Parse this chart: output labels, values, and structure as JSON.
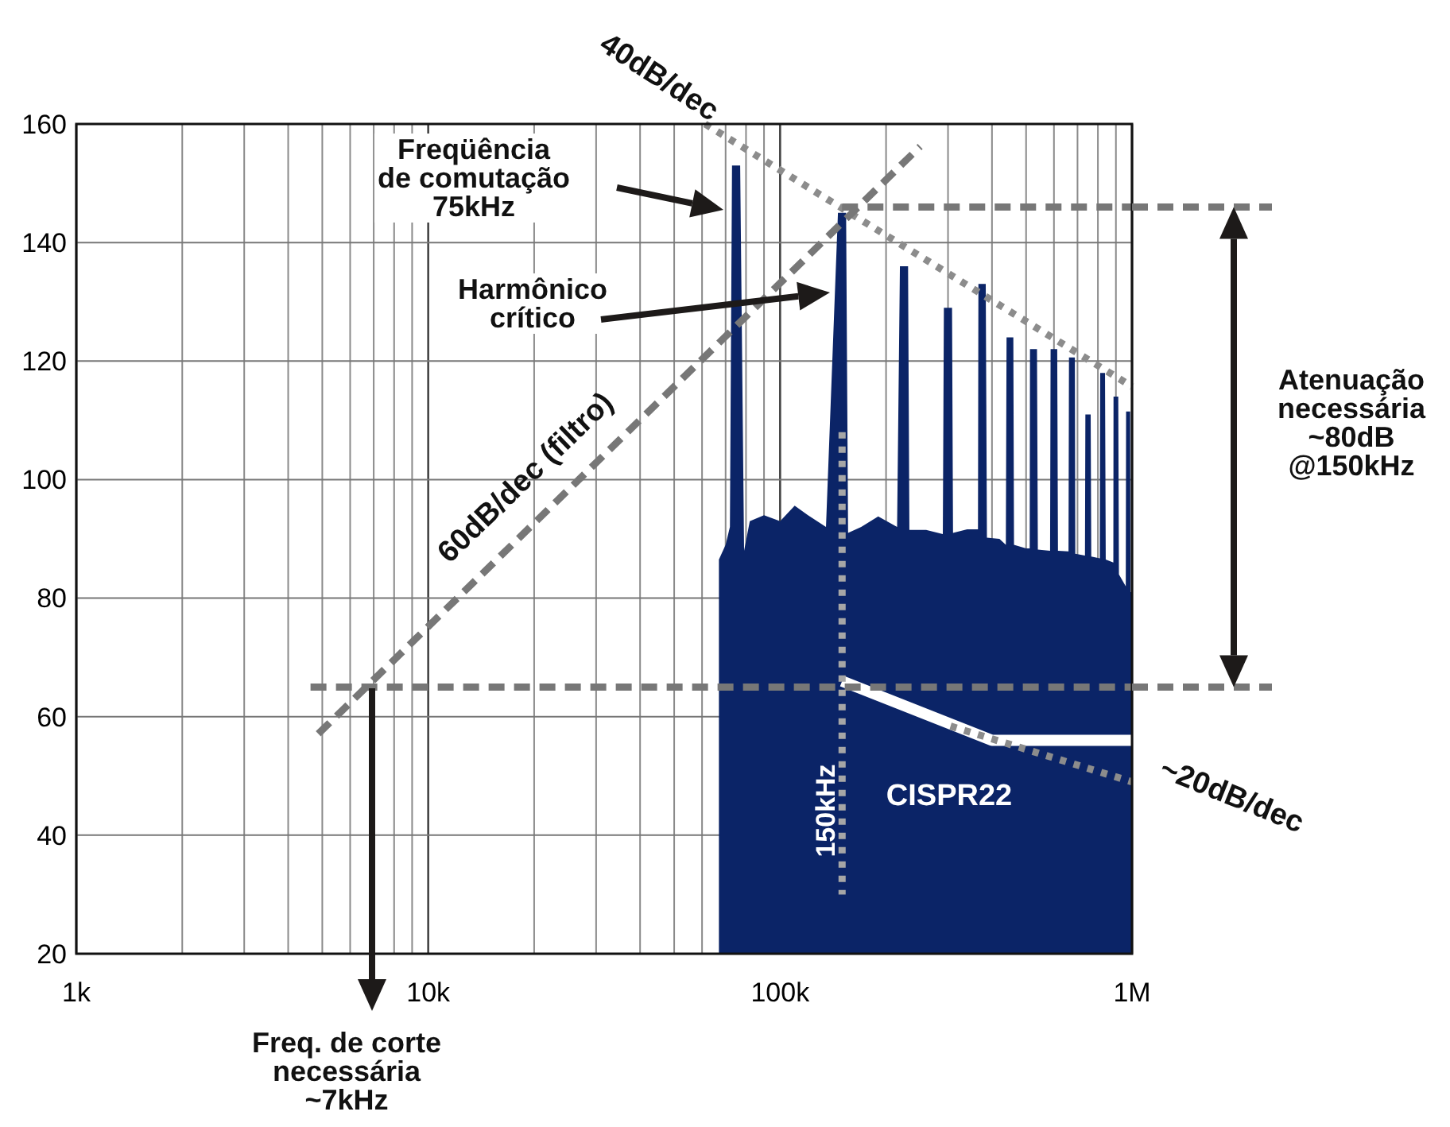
{
  "chart_data": {
    "type": "area",
    "log": "x",
    "grid": true,
    "xlim": [
      1000,
      1000000
    ],
    "ylim": [
      20,
      160
    ],
    "xticks": [
      {
        "value": 1000,
        "label": "1k"
      },
      {
        "value": 2000,
        "label": null
      },
      {
        "value": 3000,
        "label": null
      },
      {
        "value": 4000,
        "label": null
      },
      {
        "value": 5000,
        "label": null
      },
      {
        "value": 6000,
        "label": null
      },
      {
        "value": 7000,
        "label": null
      },
      {
        "value": 8000,
        "label": null
      },
      {
        "value": 9000,
        "label": null
      },
      {
        "value": 10000,
        "label": "10k"
      },
      {
        "value": 20000,
        "label": null
      },
      {
        "value": 30000,
        "label": null
      },
      {
        "value": 40000,
        "label": null
      },
      {
        "value": 50000,
        "label": null
      },
      {
        "value": 60000,
        "label": null
      },
      {
        "value": 70000,
        "label": null
      },
      {
        "value": 80000,
        "label": null
      },
      {
        "value": 90000,
        "label": null
      },
      {
        "value": 100000,
        "label": "100k"
      },
      {
        "value": 200000,
        "label": null
      },
      {
        "value": 300000,
        "label": null
      },
      {
        "value": 400000,
        "label": null
      },
      {
        "value": 500000,
        "label": null
      },
      {
        "value": 600000,
        "label": null
      },
      {
        "value": 700000,
        "label": null
      },
      {
        "value": 800000,
        "label": null
      },
      {
        "value": 900000,
        "label": null
      },
      {
        "value": 1000000,
        "label": "1M"
      }
    ],
    "yticks": [
      20,
      40,
      60,
      80,
      100,
      120,
      140,
      160
    ],
    "series": [
      {
        "color": "#0b2467",
        "x": [
          67000,
          70000,
          72000,
          73000,
          77000,
          79000,
          82000,
          90000,
          100000,
          110000,
          120000,
          135000,
          146000,
          154000,
          156000,
          170000,
          190000,
          215000,
          219000,
          231000,
          233000,
          260000,
          290000,
          292000,
          308000,
          310000,
          340000,
          365000,
          366000,
          384000,
          387000,
          420000,
          438000,
          440000,
          460000,
          462000,
          500000,
          512000,
          513000,
          537000,
          540000,
          585000,
          587000,
          613000,
          616000,
          660000,
          662000,
          688000,
          690000,
          735000,
          737000,
          763000,
          766000,
          810000,
          812000,
          838000,
          842000,
          885000,
          886000,
          914000,
          918000,
          960000,
          962000,
          988000,
          990000,
          1000000
        ],
        "values": [
          86.5,
          89,
          92,
          153,
          153,
          88,
          93,
          94,
          93,
          95.6,
          94,
          92,
          145,
          145,
          91,
          92,
          93.8,
          92,
          136,
          136,
          91.5,
          91.5,
          90.8,
          129,
          129,
          91,
          91.6,
          91.6,
          133,
          133,
          90.2,
          90,
          89,
          124,
          124,
          89,
          88.4,
          88.4,
          122,
          122,
          88.2,
          88,
          122,
          122,
          88,
          87.9,
          120.6,
          120.6,
          87.5,
          87.2,
          111,
          111,
          87,
          86.7,
          118,
          118,
          86.5,
          86,
          114,
          114,
          84,
          82,
          111.5,
          111.5,
          81,
          81
        ]
      },
      {
        "type": "line",
        "name": "CISPR22",
        "color": "#ffffff",
        "line_style": "solid",
        "x": [
          150000,
          400000,
          1000000
        ],
        "values": [
          66,
          56,
          56
        ]
      },
      {
        "type": "line",
        "name": "40dB/dec",
        "color": "#8c8c8c",
        "line_style": "dotted",
        "x": [
          61200,
          1000000
        ],
        "values": [
          160,
          115.7
        ]
      },
      {
        "type": "line",
        "name": "60dB/dec (filtro)",
        "color": "#777777",
        "line_style": "dashed",
        "x": [
          4870,
          250000
        ],
        "values": [
          57.1,
          156.2
        ]
      },
      {
        "type": "line",
        "name": "~20dB/dec",
        "color": "#8c8c8c",
        "line_style": "dotted",
        "x": [
          305000,
          1000000
        ],
        "values": [
          58.4,
          49
        ]
      },
      {
        "type": "line",
        "color": "#777777",
        "line_style": "dashed",
        "x": [
          4630,
          1000000
        ],
        "values": [
          65,
          65
        ]
      },
      {
        "type": "line",
        "color": "#777777",
        "line_style": "dashed",
        "x": [
          150000,
          1000000
        ],
        "values": [
          146,
          146
        ]
      },
      {
        "type": "line",
        "color": "#a6a6a6",
        "line_style": "dotted",
        "x": [
          150000,
          150000
        ],
        "values": [
          108,
          30
        ]
      }
    ],
    "annotations": [
      "Freqüência\nde comutação\n75kHz",
      "Harmônico\ncrítico",
      "Freq. de corte\nnecessária\n~7kHz",
      "Atenuação\nnecessária\n~80dB\n@150kHz",
      "150kHz"
    ]
  }
}
